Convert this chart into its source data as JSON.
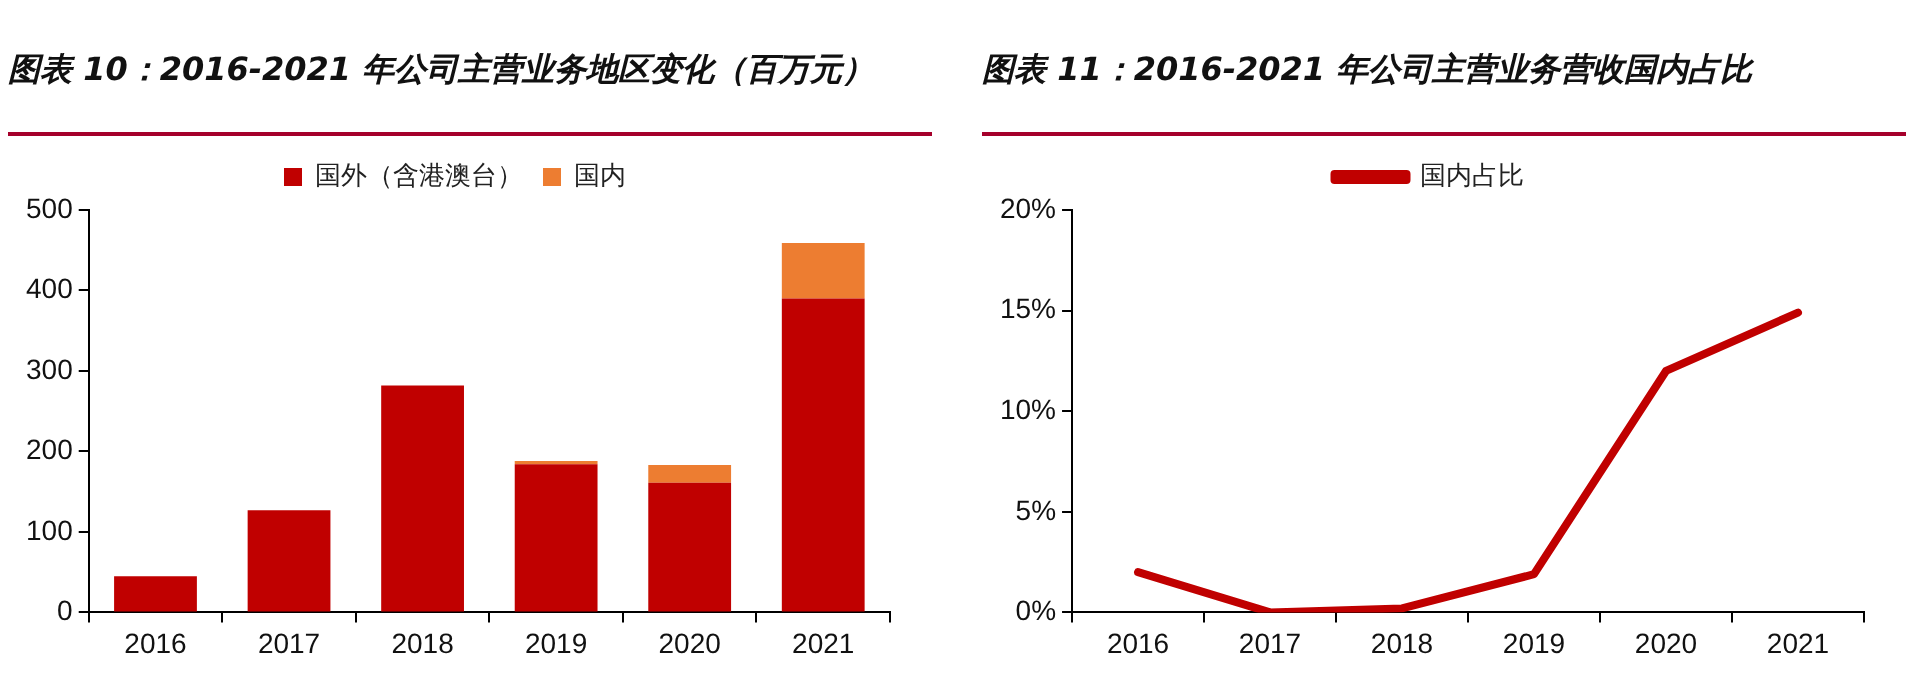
{
  "chart_data": [
    {
      "type": "bar",
      "title": "图表 10：2016-2021 年公司主营业务地区变化（百万元）",
      "categories": [
        "2016",
        "2017",
        "2018",
        "2019",
        "2020",
        "2021"
      ],
      "stacked": true,
      "series": [
        {
          "name": "国外（含港澳台）",
          "color": "#c00000",
          "values": [
            45,
            127,
            282,
            184,
            161,
            390
          ]
        },
        {
          "name": "国内",
          "color": "#ed7d31",
          "values": [
            0,
            0,
            null,
            4,
            22,
            69
          ]
        }
      ],
      "ylim": [
        0,
        500
      ],
      "yticks": [
        0,
        100,
        200,
        300,
        400,
        500
      ],
      "grid": false,
      "legend": "top"
    },
    {
      "type": "line",
      "title": "图表 11：2016-2021 年公司主营业务营收国内占比",
      "categories": [
        "2016",
        "2017",
        "2018",
        "2019",
        "2020",
        "2021"
      ],
      "series": [
        {
          "name": "国内占比",
          "color": "#c00000",
          "values": [
            2,
            0,
            0.2,
            1.9,
            12,
            14.9
          ]
        }
      ],
      "ylim": [
        0,
        20
      ],
      "yticks": [
        {
          "value": 0,
          "label": "0%"
        },
        {
          "value": 5,
          "label": "5%"
        },
        {
          "value": 10,
          "label": "10%"
        },
        {
          "value": 15,
          "label": "15%"
        },
        {
          "value": 20,
          "label": "20%"
        }
      ],
      "grid": false,
      "legend": "top",
      "marker": "none",
      "line_style": "solid"
    }
  ]
}
